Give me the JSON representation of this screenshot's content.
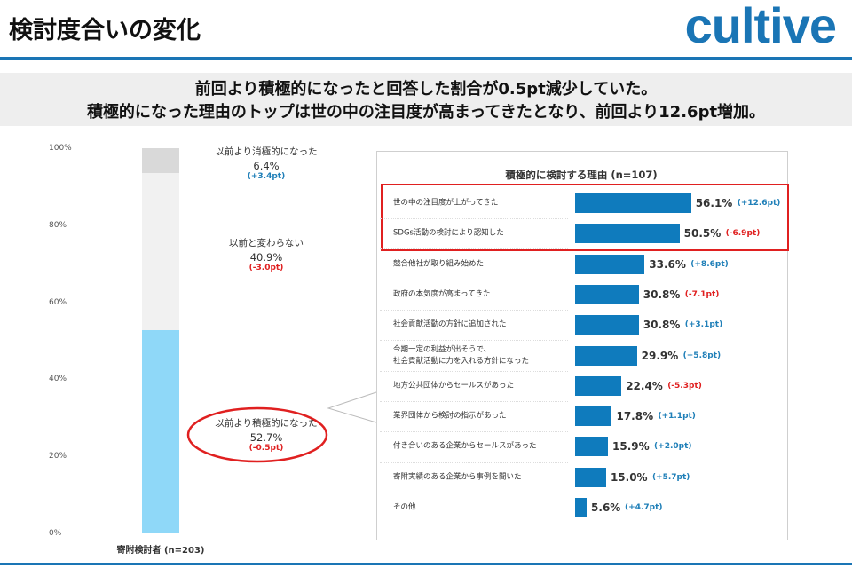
{
  "header": {
    "title": "検討度合いの変化",
    "logo": "cultive"
  },
  "summary": [
    "前回より積極的になったと回答した割合が0.5pt減少していた。",
    "積極的になった理由のトップは世の中の注目度が高まってきたとなり、前回より12.6pt増加。"
  ],
  "chart_data": [
    {
      "type": "stacked-bar",
      "categories": [
        "寄附検討者 (n=203)"
      ],
      "ylim": [
        0,
        100
      ],
      "yticks": [
        {
          "value": 0,
          "label": "0%"
        },
        {
          "value": 20,
          "label": "20%"
        },
        {
          "value": 40,
          "label": "40%"
        },
        {
          "value": 60,
          "label": "60%"
        },
        {
          "value": 80,
          "label": "80%"
        },
        {
          "value": 100,
          "label": "100%"
        }
      ],
      "change_colors": {
        "positive": "#1f7fb8",
        "negative": "#e02020"
      },
      "series": [
        {
          "name": "以前より積極的になった",
          "color": "#8fd8f8",
          "values": [
            52.7
          ],
          "value_labels": [
            "52.7%"
          ],
          "changes": [
            "(-0.5pt)"
          ]
        },
        {
          "name": "以前と変わらない",
          "color": "#f1f1f1",
          "values": [
            40.9
          ],
          "value_labels": [
            "40.9%"
          ],
          "changes": [
            "(-3.0pt)"
          ]
        },
        {
          "name": "以前より消極的になった",
          "color": "#d9d9d9",
          "values": [
            6.4
          ],
          "value_labels": [
            "6.4%"
          ],
          "changes": [
            "(+3.4pt)"
          ]
        }
      ]
    },
    {
      "type": "hbar",
      "title": "積極的に検討する理由 (n=107)",
      "categories": [
        "世の中の注目度が上がってきた",
        "SDGs活動の検討により認知した",
        "競合他社が取り組み始めた",
        "政府の本気度が高まってきた",
        "社会貢献活動の方針に追加された",
        "今期一定の利益が出そうで、\n社会貢献活動に力を入れる方針になった",
        "地方公共団体からセールスがあった",
        "業界団体から検討の指示があった",
        "付き合いのある企業からセールスがあった",
        "寄附実績のある企業から事例を聞いた",
        "その他"
      ],
      "values": [
        56.1,
        50.5,
        33.6,
        30.8,
        30.8,
        29.9,
        22.4,
        17.8,
        15.9,
        15.0,
        5.6
      ],
      "value_labels": [
        "56.1%",
        "50.5%",
        "33.6%",
        "30.8%",
        "30.8%",
        "29.9%",
        "22.4%",
        "17.8%",
        "15.9%",
        "15.0%",
        "5.6%"
      ],
      "changes": [
        "(+12.6pt)",
        "(-6.9pt)",
        "(+8.6pt)",
        "(-7.1pt)",
        "(+3.1pt)",
        "(+5.8pt)",
        "(-5.3pt)",
        "(+1.1pt)",
        "(+2.0pt)",
        "(+5.7pt)",
        "(+4.7pt)"
      ],
      "change_colors": {
        "positive": "#1f7fb8",
        "negative": "#e02020"
      },
      "color": "#0f7bbd",
      "xlim": [
        0,
        100
      ]
    }
  ]
}
